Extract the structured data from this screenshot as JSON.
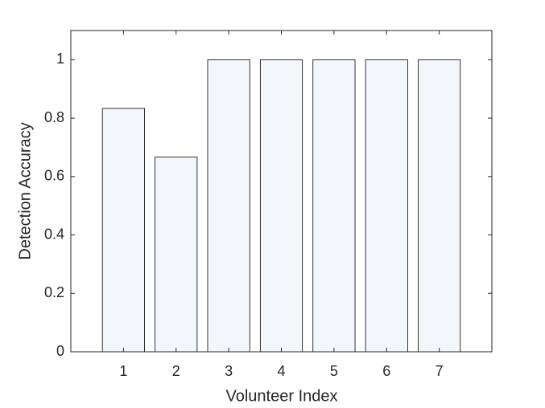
{
  "chart_data": {
    "type": "bar",
    "x": [
      1,
      2,
      3,
      4,
      5,
      6,
      7
    ],
    "values": [
      0.8333,
      0.6667,
      1,
      1,
      1,
      1,
      1
    ],
    "color": "#f3f7fc",
    "xlabel": "Volunteer Index",
    "ylabel": "Detection Accuracy",
    "xlim": [
      0,
      8
    ],
    "xticks": [
      1,
      2,
      3,
      4,
      5,
      6,
      7
    ],
    "ylim": [
      0,
      1.1
    ],
    "yticks": [
      0,
      0.2,
      0.4,
      0.6,
      0.8,
      1
    ],
    "bar_width": 0.8
  }
}
